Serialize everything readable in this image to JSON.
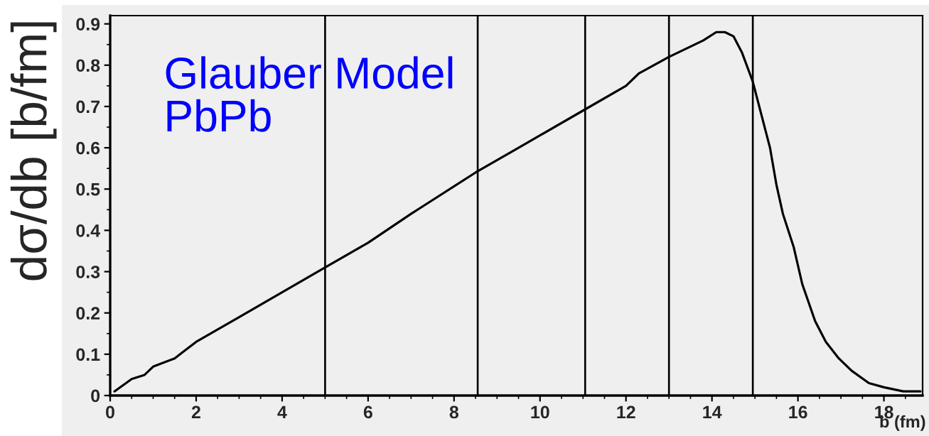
{
  "chart_data": {
    "type": "line",
    "xlabel": "b (fm)",
    "ylabel": "dσ/db [b/fm]",
    "annotations": [
      "Glauber Model\nPbPb"
    ],
    "xlim": [
      0,
      18.9
    ],
    "ylim": [
      0,
      0.92
    ],
    "xticks": [
      0,
      {
        "value": 0.5,
        "label": null
      },
      {
        "value": 1,
        "label": null
      },
      {
        "value": 1.5,
        "label": null
      },
      2,
      {
        "value": 2.5,
        "label": null
      },
      {
        "value": 3,
        "label": null
      },
      {
        "value": 3.5,
        "label": null
      },
      4,
      {
        "value": 4.5,
        "label": null
      },
      {
        "value": 5,
        "label": null
      },
      {
        "value": 5.5,
        "label": null
      },
      6,
      {
        "value": 6.5,
        "label": null
      },
      {
        "value": 7,
        "label": null
      },
      {
        "value": 7.5,
        "label": null
      },
      8,
      {
        "value": 8.5,
        "label": null
      },
      {
        "value": 9,
        "label": null
      },
      {
        "value": 9.5,
        "label": null
      },
      10,
      {
        "value": 10.5,
        "label": null
      },
      {
        "value": 11,
        "label": null
      },
      {
        "value": 11.5,
        "label": null
      },
      12,
      {
        "value": 12.5,
        "label": null
      },
      {
        "value": 13,
        "label": null
      },
      {
        "value": 13.5,
        "label": null
      },
      14,
      {
        "value": 14.5,
        "label": null
      },
      {
        "value": 15,
        "label": null
      },
      {
        "value": 15.5,
        "label": null
      },
      16,
      {
        "value": 16.5,
        "label": null
      },
      {
        "value": 17,
        "label": null
      },
      {
        "value": 17.5,
        "label": null
      },
      18,
      {
        "value": 18.5,
        "label": null
      }
    ],
    "yticks": [
      0,
      {
        "value": 0.05,
        "label": null
      },
      0.1,
      {
        "value": 0.15,
        "label": null
      },
      0.2,
      {
        "value": 0.25,
        "label": null
      },
      0.3,
      {
        "value": 0.35,
        "label": null
      },
      0.4,
      {
        "value": 0.45,
        "label": null
      },
      0.5,
      {
        "value": 0.55,
        "label": null
      },
      0.6,
      {
        "value": 0.65,
        "label": null
      },
      0.7,
      {
        "value": 0.75,
        "label": null
      },
      0.8,
      {
        "value": 0.85,
        "label": null
      },
      0.9
    ],
    "ref_lines": [
      {
        "axis": "x",
        "value": 5.0,
        "color": "#000000"
      },
      {
        "axis": "x",
        "value": 8.55,
        "color": "#000000"
      },
      {
        "axis": "x",
        "value": 11.05,
        "color": "#000000"
      },
      {
        "axis": "x",
        "value": 13.0,
        "color": "#000000"
      },
      {
        "axis": "x",
        "value": 14.95,
        "color": "#000000"
      }
    ],
    "series": [
      {
        "color": "#000000",
        "x": [
          0.1,
          0.5,
          0.8,
          1.0,
          1.5,
          2.0,
          3.0,
          4.0,
          5.0,
          6.0,
          7.0,
          7.3,
          8.5,
          9.5,
          10.0,
          11.0,
          12.0,
          12.3,
          13.0,
          13.8,
          14.1,
          14.3,
          14.5,
          14.7,
          14.95,
          15.15,
          15.35,
          15.5,
          15.65,
          15.9,
          16.1,
          16.4,
          16.65,
          16.95,
          17.25,
          17.65,
          18.0,
          18.45,
          18.85
        ],
        "values": [
          0.01,
          0.04,
          0.05,
          0.07,
          0.09,
          0.13,
          0.19,
          0.25,
          0.31,
          0.37,
          0.44,
          0.46,
          0.54,
          0.6,
          0.63,
          0.69,
          0.75,
          0.78,
          0.82,
          0.86,
          0.88,
          0.88,
          0.87,
          0.83,
          0.76,
          0.68,
          0.6,
          0.51,
          0.44,
          0.36,
          0.27,
          0.18,
          0.13,
          0.09,
          0.06,
          0.03,
          0.02,
          0.01,
          0.01
        ]
      }
    ]
  }
}
